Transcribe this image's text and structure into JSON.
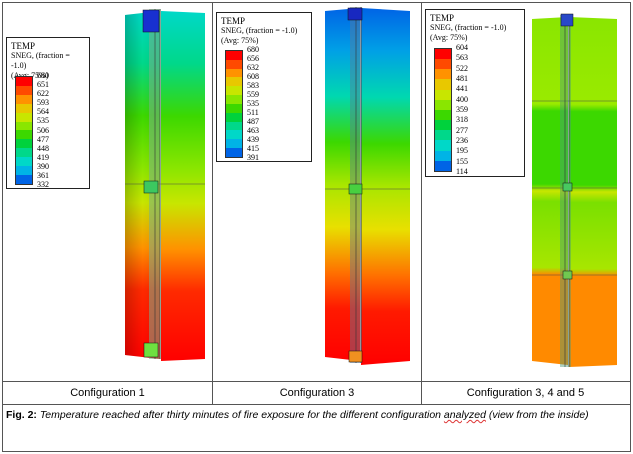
{
  "legend_common": {
    "title": "TEMP",
    "subtitle": "SNEG, (fraction = -1.0)",
    "avg": "(Avg: 75%)"
  },
  "panels": [
    {
      "caption": "Configuration 1",
      "legend_values": [
        "680",
        "651",
        "622",
        "593",
        "564",
        "535",
        "506",
        "477",
        "448",
        "419",
        "390",
        "361",
        "332"
      ]
    },
    {
      "caption": "Configuration 3",
      "legend_values": [
        "680",
        "656",
        "632",
        "608",
        "583",
        "559",
        "535",
        "511",
        "487",
        "463",
        "439",
        "415",
        "391"
      ]
    },
    {
      "caption": "Configuration 3, 4 and 5",
      "legend_values": [
        "604",
        "563",
        "522",
        "481",
        "441",
        "400",
        "359",
        "318",
        "277",
        "236",
        "195",
        "155",
        "114"
      ]
    }
  ],
  "contour_colors": [
    "#ff0000",
    "#ff4a00",
    "#ff9200",
    "#e8c800",
    "#c8e600",
    "#8ae600",
    "#3cd800",
    "#00d23c",
    "#00d88a",
    "#00d8c8",
    "#00b4e6",
    "#0064e6",
    "#0000e6"
  ],
  "figure_caption": {
    "label": "Fig. 2:",
    "text_before": "Temperature reached after thirty minutes of fire exposure for the different configuration ",
    "misspelled_word": "analyzed",
    "text_after": " (view from the inside)"
  }
}
